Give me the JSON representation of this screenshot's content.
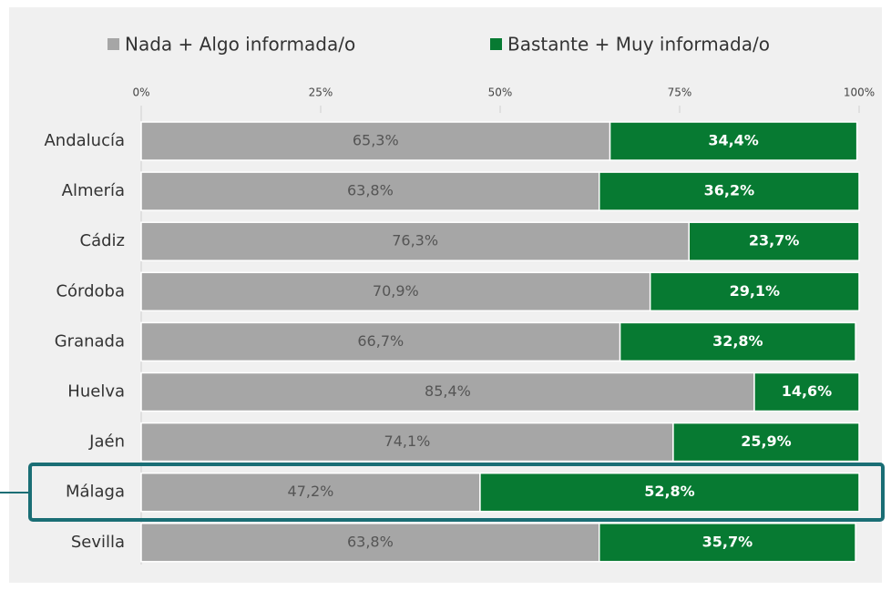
{
  "chart_data": {
    "type": "stacked_bar_horizontal",
    "categories": [
      "Andalucía",
      "Almería",
      "Cádiz",
      "Córdoba",
      "Granada",
      "Huelva",
      "Jaén",
      "Málaga",
      "Sevilla"
    ],
    "series": [
      {
        "name": "Nada + Algo informada/o",
        "color": "#a6a6a6",
        "values": [
          65.3,
          63.8,
          76.3,
          70.9,
          66.7,
          85.4,
          74.1,
          47.2,
          63.8
        ],
        "value_labels": [
          "65,3%",
          "63,8%",
          "76,3%",
          "70,9%",
          "66,7%",
          "85,4%",
          "74,1%",
          "47,2%",
          "63,8%"
        ]
      },
      {
        "name": "Bastante + Muy informada/o",
        "color": "#077a32",
        "values": [
          34.4,
          36.2,
          23.7,
          29.1,
          32.8,
          14.6,
          25.9,
          52.8,
          35.7
        ],
        "value_labels": [
          "34,4%",
          "36,2%",
          "23,7%",
          "29,1%",
          "32,8%",
          "14,6%",
          "25,9%",
          "52,8%",
          "35,7%"
        ]
      }
    ],
    "xlim": [
      0,
      100
    ],
    "xticks": [
      {
        "value": 0,
        "label": "0%"
      },
      {
        "value": 25,
        "label": "25%"
      },
      {
        "value": 50,
        "label": "50%"
      },
      {
        "value": 75,
        "label": "75%"
      },
      {
        "value": 100,
        "label": "100%"
      }
    ],
    "legend": "top"
  }
}
